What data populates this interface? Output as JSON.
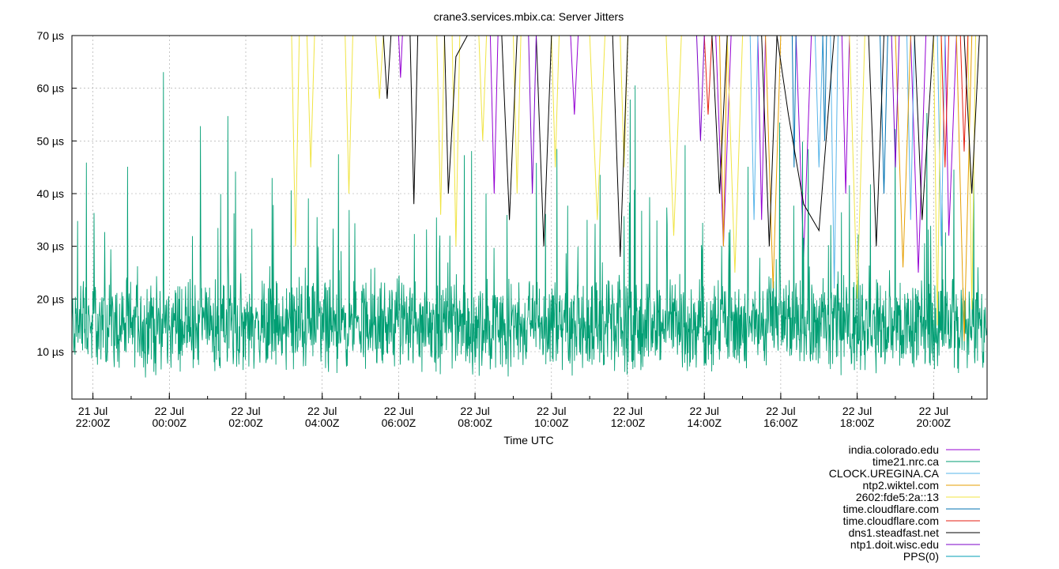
{
  "chart_data": {
    "type": "line",
    "title": "crane3.services.mbix.ca: Server Jitters",
    "xlabel": "Time UTC",
    "ylabel": "",
    "ylim": [
      1,
      70
    ],
    "y_unit": "µs",
    "y_ticks": [
      10,
      20,
      30,
      40,
      50,
      60,
      70
    ],
    "y_tick_labels": [
      "10 µs",
      "20 µs",
      "30 µs",
      "40 µs",
      "50 µs",
      "60 µs",
      "70 µs"
    ],
    "x_range_hours": [
      -2.55,
      21.4
    ],
    "x_ticks": [
      {
        "hour": -2,
        "line1": "21 Jul",
        "line2": "22:00Z"
      },
      {
        "hour": 0,
        "line1": "22 Jul",
        "line2": "00:00Z"
      },
      {
        "hour": 2,
        "line1": "22 Jul",
        "line2": "02:00Z"
      },
      {
        "hour": 4,
        "line1": "22 Jul",
        "line2": "04:00Z"
      },
      {
        "hour": 6,
        "line1": "22 Jul",
        "line2": "06:00Z"
      },
      {
        "hour": 8,
        "line1": "22 Jul",
        "line2": "08:00Z"
      },
      {
        "hour": 10,
        "line1": "22 Jul",
        "line2": "10:00Z"
      },
      {
        "hour": 12,
        "line1": "22 Jul",
        "line2": "12:00Z"
      },
      {
        "hour": 14,
        "line1": "22 Jul",
        "line2": "14:00Z"
      },
      {
        "hour": 16,
        "line1": "22 Jul",
        "line2": "16:00Z"
      },
      {
        "hour": 18,
        "line1": "22 Jul",
        "line2": "18:00Z"
      },
      {
        "hour": 20,
        "line1": "22 Jul",
        "line2": "20:00Z"
      }
    ],
    "grid": true,
    "legend_position": "bottom-right",
    "series": [
      {
        "name": "india.colorado.edu",
        "color": "#9400d3",
        "points": [
          [
            6.0,
            70
          ],
          [
            6.05,
            62
          ],
          [
            6.1,
            70
          ],
          [
            8.4,
            70
          ],
          [
            8.5,
            40
          ],
          [
            8.6,
            70
          ],
          [
            10.5,
            70
          ],
          [
            10.6,
            55
          ],
          [
            10.7,
            70
          ],
          [
            14.3,
            70
          ],
          [
            14.5,
            30
          ],
          [
            14.7,
            70
          ],
          [
            15.4,
            70
          ],
          [
            15.5,
            35
          ],
          [
            15.6,
            70
          ],
          [
            16.4,
            70
          ],
          [
            16.6,
            28
          ],
          [
            16.8,
            70
          ],
          [
            17.6,
            70
          ],
          [
            17.7,
            40
          ],
          [
            17.8,
            70
          ],
          [
            19.4,
            70
          ],
          [
            19.6,
            25
          ],
          [
            19.8,
            70
          ],
          [
            20.3,
            70
          ],
          [
            20.4,
            32
          ],
          [
            20.6,
            70
          ]
        ]
      },
      {
        "name": "time21.nrc.ca",
        "color": "#009e73",
        "generated": "noise-main",
        "base": 15.0,
        "spread": 6.0
      },
      {
        "name": "CLOCK.UREGINA.CA",
        "color": "#56b4e9",
        "points": [
          [
            15.2,
            70
          ],
          [
            15.3,
            35
          ],
          [
            15.4,
            70
          ],
          [
            16.9,
            70
          ],
          [
            17.0,
            45
          ],
          [
            17.1,
            70
          ],
          [
            17.3,
            70
          ],
          [
            17.4,
            22
          ],
          [
            17.5,
            70
          ],
          [
            19.3,
            70
          ],
          [
            19.4,
            35
          ],
          [
            19.5,
            70
          ],
          [
            20.1,
            70
          ],
          [
            20.2,
            30
          ],
          [
            20.3,
            70
          ]
        ]
      },
      {
        "name": "ntp2.wiktel.com",
        "color": "#e69f00",
        "points": [
          [
            14.4,
            70
          ],
          [
            14.5,
            30
          ],
          [
            14.6,
            70
          ],
          [
            15.6,
            70
          ],
          [
            15.8,
            22
          ],
          [
            16.0,
            70
          ],
          [
            19.0,
            70
          ],
          [
            19.2,
            26
          ],
          [
            19.4,
            70
          ],
          [
            20.6,
            70
          ],
          [
            20.8,
            12
          ],
          [
            21.0,
            70
          ]
        ]
      },
      {
        "name": "2602:fde5:2a::13",
        "color": "#f0e442",
        "points": [
          [
            3.2,
            70
          ],
          [
            3.3,
            30
          ],
          [
            3.4,
            70
          ],
          [
            3.6,
            70
          ],
          [
            3.7,
            45
          ],
          [
            3.8,
            70
          ],
          [
            4.6,
            70
          ],
          [
            4.7,
            40
          ],
          [
            4.8,
            70
          ],
          [
            5.4,
            70
          ],
          [
            5.5,
            58
          ],
          [
            5.6,
            70
          ],
          [
            7.0,
            70
          ],
          [
            7.1,
            36
          ],
          [
            7.2,
            70
          ],
          [
            7.4,
            70
          ],
          [
            7.5,
            30
          ],
          [
            7.6,
            70
          ],
          [
            8.1,
            70
          ],
          [
            8.2,
            50
          ],
          [
            8.3,
            70
          ],
          [
            9.0,
            70
          ],
          [
            9.1,
            40
          ],
          [
            9.2,
            70
          ],
          [
            10.0,
            70
          ],
          [
            10.1,
            45
          ],
          [
            10.2,
            70
          ],
          [
            11.0,
            70
          ],
          [
            11.2,
            35
          ],
          [
            11.4,
            70
          ],
          [
            11.8,
            70
          ],
          [
            11.9,
            45
          ],
          [
            12.0,
            70
          ],
          [
            13.0,
            70
          ],
          [
            13.2,
            32
          ],
          [
            13.4,
            70
          ],
          [
            14.6,
            70
          ],
          [
            14.8,
            25
          ],
          [
            15.0,
            70
          ],
          [
            17.8,
            70
          ],
          [
            18.0,
            20
          ],
          [
            18.2,
            70
          ],
          [
            20.0,
            70
          ],
          [
            20.1,
            15
          ],
          [
            20.2,
            70
          ],
          [
            20.9,
            70
          ],
          [
            21.0,
            18
          ],
          [
            21.1,
            70
          ]
        ]
      },
      {
        "name": "time.cloudflare.com",
        "color": "#0072b2",
        "points": [
          [
            16.3,
            70
          ],
          [
            16.35,
            45
          ],
          [
            16.4,
            70
          ],
          [
            17.1,
            70
          ],
          [
            17.15,
            50
          ],
          [
            17.2,
            70
          ],
          [
            18.6,
            70
          ],
          [
            18.7,
            40
          ],
          [
            18.8,
            70
          ]
        ]
      },
      {
        "name": "time.cloudflare.com",
        "color": "#e51e10",
        "points": [
          [
            14.0,
            70
          ],
          [
            14.1,
            55
          ],
          [
            14.2,
            70
          ],
          [
            20.2,
            70
          ],
          [
            20.3,
            45
          ],
          [
            20.4,
            70
          ],
          [
            20.7,
            70
          ],
          [
            20.8,
            48
          ],
          [
            20.9,
            70
          ]
        ]
      },
      {
        "name": "dns1.steadfast.net",
        "color": "#000000",
        "points": [
          [
            5.6,
            70
          ],
          [
            5.7,
            58
          ],
          [
            5.8,
            70
          ],
          [
            6.3,
            70
          ],
          [
            6.4,
            38
          ],
          [
            6.5,
            70
          ],
          [
            7.2,
            70
          ],
          [
            7.3,
            40
          ],
          [
            7.5,
            66
          ],
          [
            7.8,
            70
          ],
          [
            8.7,
            70
          ],
          [
            8.9,
            35
          ],
          [
            9.1,
            70
          ],
          [
            9.6,
            70
          ],
          [
            9.8,
            30
          ],
          [
            10.0,
            70
          ],
          [
            11.6,
            70
          ],
          [
            11.8,
            28
          ],
          [
            12.0,
            70
          ],
          [
            14.2,
            70
          ],
          [
            14.4,
            40
          ],
          [
            14.6,
            70
          ],
          [
            15.5,
            70
          ],
          [
            15.7,
            30
          ],
          [
            15.9,
            70
          ],
          [
            16.2,
            55
          ],
          [
            16.6,
            38
          ],
          [
            17.0,
            33
          ],
          [
            17.4,
            70
          ],
          [
            18.3,
            70
          ],
          [
            18.5,
            30
          ],
          [
            18.7,
            70
          ],
          [
            19.5,
            70
          ],
          [
            19.7,
            35
          ],
          [
            20.0,
            70
          ],
          [
            20.8,
            70
          ],
          [
            21.0,
            40
          ],
          [
            21.2,
            70
          ]
        ]
      },
      {
        "name": "ntp1.doit.wisc.edu",
        "color": "#7b00c8",
        "points": [
          [
            9.4,
            70
          ],
          [
            9.5,
            40
          ],
          [
            9.6,
            70
          ],
          [
            13.8,
            70
          ],
          [
            13.9,
            50
          ],
          [
            14.0,
            70
          ],
          [
            18.9,
            70
          ],
          [
            19.0,
            45
          ],
          [
            19.1,
            70
          ]
        ]
      },
      {
        "name": "PPS(0)",
        "color": "#009fb5",
        "points": []
      }
    ]
  }
}
